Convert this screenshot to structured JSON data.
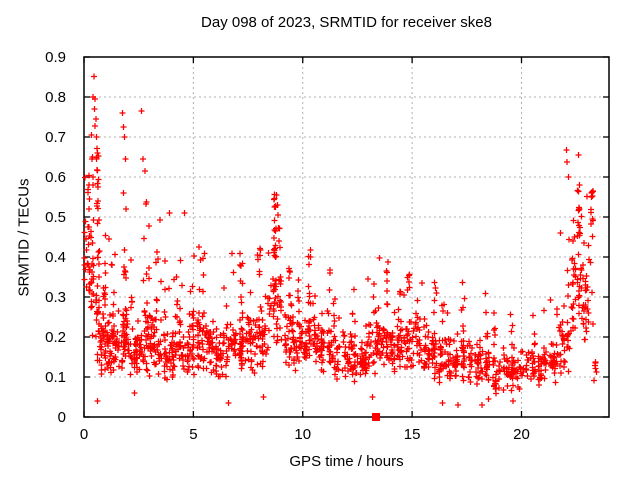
{
  "page": {
    "background": "#ffffff"
  },
  "chart_data": {
    "type": "scatter",
    "title": "Day 098 of 2023, SRMTID for receiver ske8",
    "xlabel": "GPS time / hours",
    "ylabel": "SRMTID / TECUs",
    "xlim": [
      0,
      24
    ],
    "ylim": [
      0,
      0.9
    ],
    "xticks": [
      0,
      5,
      10,
      15,
      20
    ],
    "yticks": [
      0,
      0.1,
      0.2,
      0.3,
      0.4,
      0.5,
      0.6,
      0.7,
      0.8,
      0.9
    ],
    "grid": {
      "show": true,
      "color": "#b0b0b0",
      "dash": "2,3"
    },
    "border_color": "#000000",
    "marker": {
      "shape": "plus",
      "color": "#ff0000",
      "size": 7
    },
    "legend": null,
    "seed": 980423,
    "bins_format": [
      "x_start_hour",
      "x_end_hour",
      "n_band",
      "band_low",
      "band_high",
      "n_tail",
      "tail_high"
    ],
    "density_bins": [
      [
        0.0,
        0.3,
        22,
        0.28,
        0.52,
        8,
        0.62
      ],
      [
        0.3,
        0.7,
        40,
        0.12,
        0.48,
        20,
        0.68
      ],
      [
        0.7,
        1.2,
        55,
        0.1,
        0.28,
        12,
        0.5
      ],
      [
        1.2,
        1.8,
        50,
        0.1,
        0.25,
        10,
        0.44
      ],
      [
        1.8,
        2.1,
        26,
        0.12,
        0.3,
        8,
        0.58
      ],
      [
        2.1,
        2.7,
        45,
        0.08,
        0.22,
        8,
        0.4
      ],
      [
        2.7,
        3.0,
        24,
        0.1,
        0.3,
        7,
        0.55
      ],
      [
        3.0,
        3.6,
        40,
        0.1,
        0.26,
        8,
        0.5
      ],
      [
        3.6,
        4.2,
        40,
        0.08,
        0.22,
        6,
        0.42
      ],
      [
        4.2,
        4.8,
        40,
        0.1,
        0.25,
        8,
        0.52
      ],
      [
        4.8,
        5.4,
        40,
        0.1,
        0.28,
        6,
        0.46
      ],
      [
        5.4,
        6.0,
        40,
        0.1,
        0.25,
        6,
        0.42
      ],
      [
        6.0,
        6.6,
        40,
        0.08,
        0.22,
        5,
        0.38
      ],
      [
        6.6,
        7.2,
        40,
        0.1,
        0.26,
        6,
        0.42
      ],
      [
        7.2,
        7.8,
        40,
        0.1,
        0.28,
        6,
        0.46
      ],
      [
        7.8,
        8.4,
        40,
        0.1,
        0.3,
        8,
        0.48
      ],
      [
        8.4,
        9.1,
        44,
        0.15,
        0.4,
        26,
        0.56
      ],
      [
        9.1,
        9.6,
        34,
        0.12,
        0.3,
        6,
        0.44
      ],
      [
        9.6,
        10.2,
        40,
        0.1,
        0.25,
        5,
        0.38
      ],
      [
        10.2,
        10.6,
        28,
        0.12,
        0.3,
        8,
        0.44
      ],
      [
        10.6,
        11.4,
        50,
        0.1,
        0.24,
        6,
        0.37
      ],
      [
        11.4,
        12.2,
        50,
        0.08,
        0.22,
        6,
        0.34
      ],
      [
        12.2,
        12.9,
        45,
        0.08,
        0.2,
        5,
        0.32
      ],
      [
        12.9,
        13.5,
        40,
        0.1,
        0.25,
        5,
        0.35
      ],
      [
        13.5,
        14.1,
        40,
        0.1,
        0.28,
        8,
        0.4
      ],
      [
        14.1,
        14.8,
        45,
        0.1,
        0.26,
        6,
        0.38
      ],
      [
        14.8,
        15.5,
        40,
        0.1,
        0.28,
        8,
        0.42
      ],
      [
        15.5,
        16.2,
        45,
        0.08,
        0.24,
        6,
        0.38
      ],
      [
        16.2,
        17.0,
        50,
        0.08,
        0.22,
        5,
        0.34
      ],
      [
        17.0,
        17.8,
        50,
        0.08,
        0.22,
        5,
        0.34
      ],
      [
        17.8,
        18.6,
        45,
        0.07,
        0.2,
        5,
        0.31
      ],
      [
        18.6,
        19.4,
        40,
        0.05,
        0.18,
        5,
        0.29
      ],
      [
        19.4,
        20.2,
        40,
        0.06,
        0.18,
        4,
        0.27
      ],
      [
        20.2,
        21.0,
        45,
        0.07,
        0.18,
        4,
        0.27
      ],
      [
        21.0,
        21.7,
        40,
        0.08,
        0.2,
        5,
        0.31
      ],
      [
        21.7,
        22.2,
        32,
        0.1,
        0.26,
        6,
        0.55
      ],
      [
        22.2,
        22.7,
        34,
        0.18,
        0.45,
        16,
        0.6
      ],
      [
        22.7,
        23.3,
        36,
        0.15,
        0.45,
        14,
        0.58
      ],
      [
        23.3,
        23.45,
        6,
        0.08,
        0.16,
        0,
        0.16
      ]
    ],
    "outliers": [
      [
        0.45,
        0.851
      ],
      [
        0.42,
        0.8
      ],
      [
        0.5,
        0.795
      ],
      [
        0.48,
        0.77
      ],
      [
        0.55,
        0.745
      ],
      [
        0.5,
        0.728
      ],
      [
        0.35,
        0.705
      ],
      [
        0.57,
        0.7
      ],
      [
        0.62,
        0.66
      ],
      [
        0.58,
        0.645
      ],
      [
        1.75,
        0.76
      ],
      [
        1.8,
        0.725
      ],
      [
        1.85,
        0.7
      ],
      [
        1.9,
        0.645
      ],
      [
        2.62,
        0.765
      ],
      [
        2.7,
        0.645
      ],
      [
        2.78,
        0.615
      ],
      [
        3.9,
        0.51
      ],
      [
        4.6,
        0.51
      ],
      [
        8.8,
        0.555
      ],
      [
        8.85,
        0.53
      ],
      [
        22.05,
        0.667
      ],
      [
        22.08,
        0.638
      ],
      [
        22.15,
        0.6
      ],
      [
        22.6,
        0.655
      ],
      [
        0.62,
        0.04
      ],
      [
        2.3,
        0.06
      ],
      [
        6.6,
        0.035
      ],
      [
        8.2,
        0.05
      ],
      [
        13.2,
        0.05
      ],
      [
        16.4,
        0.035
      ],
      [
        17.1,
        0.03
      ],
      [
        18.2,
        0.03
      ],
      [
        18.5,
        0.045
      ],
      [
        19.6,
        0.04
      ]
    ],
    "special_points": [
      {
        "x": 13.35,
        "y": 0,
        "marker": "filled-square",
        "color": "#ff0000"
      }
    ]
  }
}
